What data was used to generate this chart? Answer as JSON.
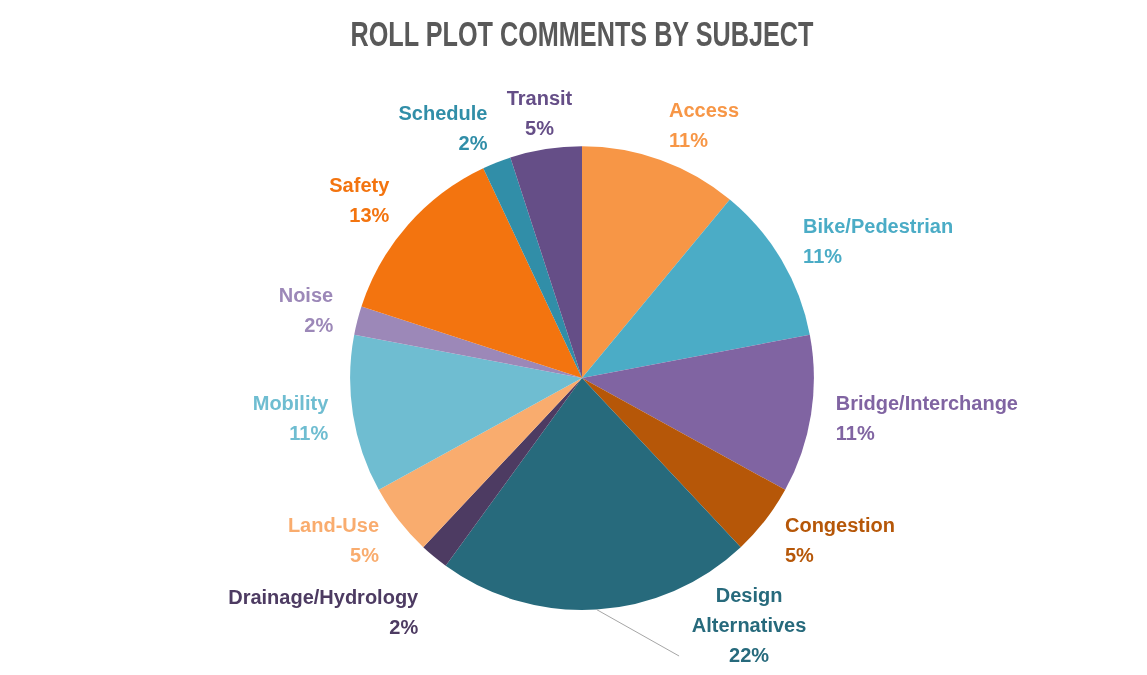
{
  "chart_data": {
    "type": "pie",
    "title": "ROLL PLOT COMMENTS BY SUBJECT",
    "categories": [
      "Access",
      "Bike/Pedestrian",
      "Bridge/Interchange",
      "Congestion",
      "Design Alternatives",
      "Drainage/Hydrology",
      "Land-Use",
      "Mobility",
      "Noise",
      "Safety",
      "Schedule",
      "Transit"
    ],
    "values": [
      11,
      11,
      11,
      5,
      22,
      2,
      5,
      11,
      2,
      13,
      2,
      5
    ],
    "value_labels": [
      "11%",
      "11%",
      "11%",
      "5%",
      "22%",
      "2%",
      "5%",
      "11%",
      "2%",
      "13%",
      "2%",
      "5%"
    ],
    "colors": [
      "#f79646",
      "#4bacc6",
      "#8064a2",
      "#b65708",
      "#276a7c",
      "#4d3b62",
      "#f9ac6e",
      "#6fbdd1",
      "#9c88b8",
      "#f3740f",
      "#318ea8",
      "#654e87"
    ],
    "legend": false
  }
}
